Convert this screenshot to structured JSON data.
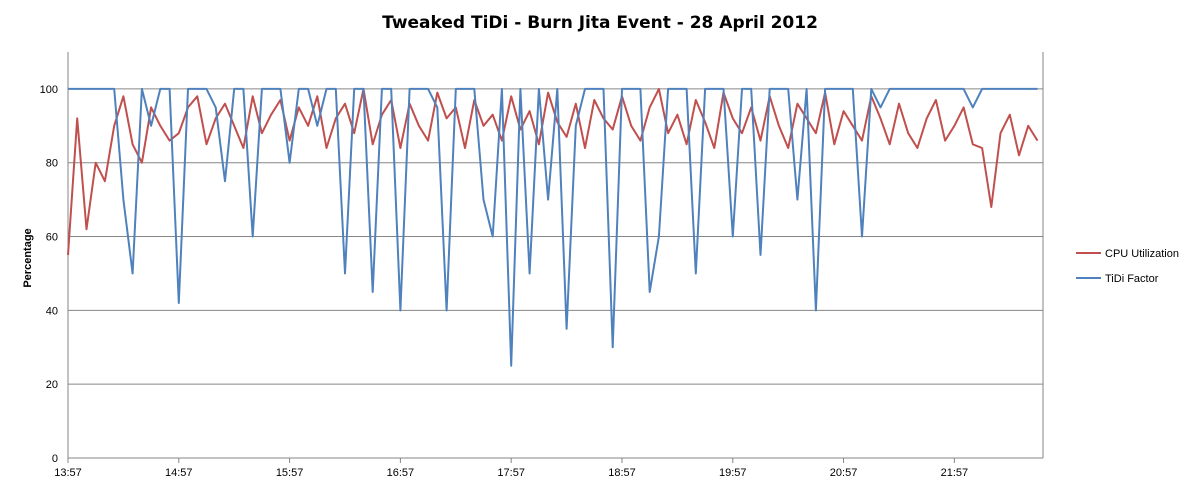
{
  "chart_data": {
    "type": "line",
    "title": "Tweaked TiDi - Burn Jita Event - 28 April 2012",
    "xlabel": "",
    "ylabel": "Percentage",
    "ylim": [
      0,
      110
    ],
    "yticks": [
      0,
      20,
      40,
      60,
      80,
      100
    ],
    "xlim": [
      "13:57",
      "22:45"
    ],
    "xticks": [
      "13:57",
      "14:57",
      "15:57",
      "16:57",
      "17:57",
      "18:57",
      "19:57",
      "20:57",
      "21:57"
    ],
    "grid": "horizontal",
    "legend_position": "right",
    "series": [
      {
        "name": "CPU Utilization",
        "color": "#c0504d",
        "x": [
          "13:57",
          "14:02",
          "14:07",
          "14:12",
          "14:17",
          "14:22",
          "14:27",
          "14:32",
          "14:37",
          "14:42",
          "14:47",
          "14:52",
          "14:57",
          "15:02",
          "15:07",
          "15:12",
          "15:17",
          "15:22",
          "15:27",
          "15:32",
          "15:37",
          "15:42",
          "15:47",
          "15:52",
          "15:57",
          "16:02",
          "16:07",
          "16:12",
          "16:17",
          "16:22",
          "16:27",
          "16:32",
          "16:37",
          "16:42",
          "16:47",
          "16:52",
          "16:57",
          "17:02",
          "17:07",
          "17:12",
          "17:17",
          "17:22",
          "17:27",
          "17:32",
          "17:37",
          "17:42",
          "17:47",
          "17:52",
          "17:57",
          "18:02",
          "18:07",
          "18:12",
          "18:17",
          "18:22",
          "18:27",
          "18:32",
          "18:37",
          "18:42",
          "18:47",
          "18:52",
          "18:57",
          "19:02",
          "19:07",
          "19:12",
          "19:17",
          "19:22",
          "19:27",
          "19:32",
          "19:37",
          "19:42",
          "19:47",
          "19:52",
          "19:57",
          "20:02",
          "20:07",
          "20:12",
          "20:17",
          "20:22",
          "20:27",
          "20:32",
          "20:37",
          "20:42",
          "20:47",
          "20:52",
          "20:57",
          "21:02",
          "21:07",
          "21:12",
          "21:17",
          "21:22",
          "21:27",
          "21:32",
          "21:37",
          "21:42",
          "21:47",
          "21:52",
          "21:57",
          "22:02",
          "22:07",
          "22:12",
          "22:17",
          "22:22",
          "22:27",
          "22:32",
          "22:37",
          "22:42"
        ],
        "values": [
          55,
          92,
          62,
          80,
          75,
          90,
          98,
          85,
          80,
          95,
          90,
          86,
          88,
          95,
          98,
          85,
          92,
          96,
          90,
          84,
          98,
          88,
          93,
          97,
          86,
          95,
          90,
          98,
          84,
          92,
          96,
          88,
          100,
          85,
          93,
          97,
          84,
          96,
          90,
          86,
          99,
          92,
          95,
          84,
          97,
          90,
          93,
          86,
          98,
          89,
          94,
          85,
          99,
          91,
          87,
          96,
          84,
          97,
          92,
          89,
          98,
          90,
          86,
          95,
          100,
          88,
          93,
          85,
          97,
          91,
          84,
          99,
          92,
          88,
          95,
          86,
          98,
          90,
          84,
          96,
          92,
          88,
          99,
          85,
          94,
          90,
          86,
          98,
          92,
          85,
          96,
          88,
          84,
          92,
          97,
          86,
          90,
          95,
          85,
          84,
          68,
          88,
          93,
          82,
          90,
          86
        ]
      },
      {
        "name": "TiDi Factor",
        "color": "#4f81bd",
        "x": [
          "13:57",
          "14:02",
          "14:07",
          "14:12",
          "14:17",
          "14:22",
          "14:27",
          "14:32",
          "14:37",
          "14:42",
          "14:47",
          "14:52",
          "14:57",
          "15:02",
          "15:07",
          "15:12",
          "15:17",
          "15:22",
          "15:27",
          "15:32",
          "15:37",
          "15:42",
          "15:47",
          "15:52",
          "15:57",
          "16:02",
          "16:07",
          "16:12",
          "16:17",
          "16:22",
          "16:27",
          "16:32",
          "16:37",
          "16:42",
          "16:47",
          "16:52",
          "16:57",
          "17:02",
          "17:07",
          "17:12",
          "17:17",
          "17:22",
          "17:27",
          "17:32",
          "17:37",
          "17:42",
          "17:47",
          "17:52",
          "17:57",
          "18:02",
          "18:07",
          "18:12",
          "18:17",
          "18:22",
          "18:27",
          "18:32",
          "18:37",
          "18:42",
          "18:47",
          "18:52",
          "18:57",
          "19:02",
          "19:07",
          "19:12",
          "19:17",
          "19:22",
          "19:27",
          "19:32",
          "19:37",
          "19:42",
          "19:47",
          "19:52",
          "19:57",
          "20:02",
          "20:07",
          "20:12",
          "20:17",
          "20:22",
          "20:27",
          "20:32",
          "20:37",
          "20:42",
          "20:47",
          "20:52",
          "20:57",
          "21:02",
          "21:07",
          "21:12",
          "21:17",
          "21:22",
          "21:27",
          "21:32",
          "21:37",
          "21:42",
          "21:47",
          "21:52",
          "21:57",
          "22:02",
          "22:07",
          "22:12",
          "22:17",
          "22:22",
          "22:27",
          "22:32",
          "22:37",
          "22:42"
        ],
        "values": [
          100,
          100,
          100,
          100,
          100,
          100,
          70,
          50,
          100,
          90,
          100,
          100,
          42,
          100,
          100,
          100,
          95,
          75,
          100,
          100,
          60,
          100,
          100,
          100,
          80,
          100,
          100,
          90,
          100,
          100,
          50,
          100,
          100,
          45,
          100,
          100,
          40,
          100,
          100,
          100,
          95,
          40,
          100,
          100,
          100,
          70,
          60,
          100,
          25,
          100,
          50,
          100,
          70,
          100,
          35,
          90,
          100,
          100,
          100,
          30,
          100,
          100,
          100,
          45,
          60,
          100,
          100,
          100,
          50,
          100,
          100,
          100,
          60,
          100,
          100,
          55,
          100,
          100,
          100,
          70,
          100,
          40,
          100,
          100,
          100,
          100,
          60,
          100,
          95,
          100,
          100,
          100,
          100,
          100,
          100,
          100,
          100,
          100,
          95,
          100,
          100,
          100,
          100,
          100,
          100,
          100
        ]
      }
    ]
  }
}
